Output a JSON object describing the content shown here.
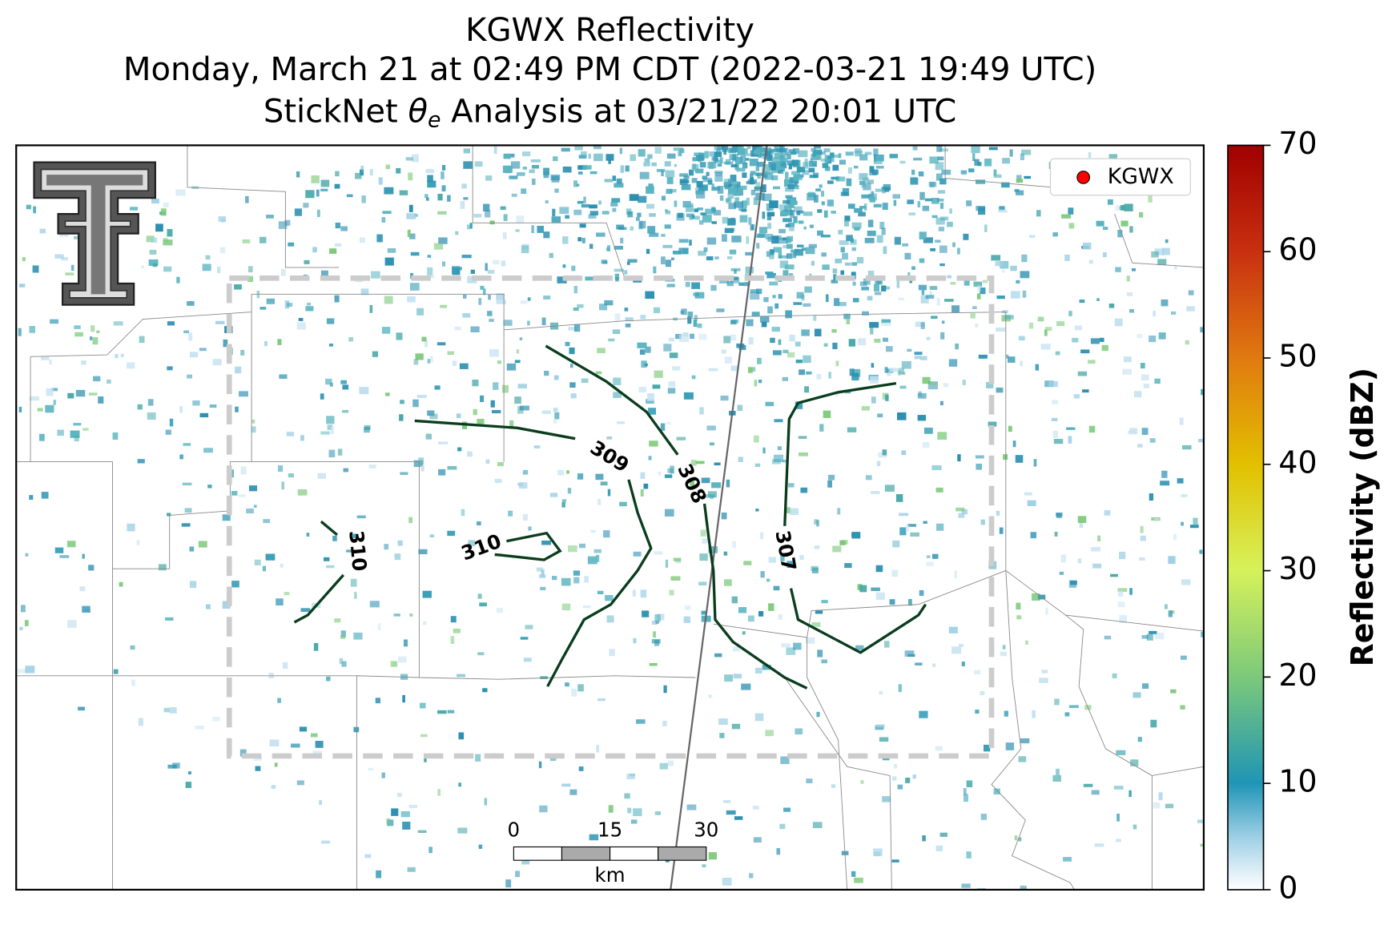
{
  "title": {
    "line1": "KGWX Reflectivity",
    "line2": "Monday, March 21 at 02:49 PM CDT (2022-03-21 19:49 UTC)",
    "line3": {
      "prefix": "StickNet ",
      "symbol": "θ",
      "subscript": "e",
      "suffix": " Analysis at 03/21/22 20:01 UTC"
    }
  },
  "legend": {
    "label": "KGWX",
    "color": "#ff0000"
  },
  "colorbar": {
    "label": "Reflectivity (dBZ)",
    "lim": [
      0,
      70
    ],
    "ticks": [
      0,
      10,
      20,
      30,
      40,
      50,
      60,
      70
    ]
  },
  "contour_labels": [
    309,
    308,
    310,
    310,
    307
  ],
  "scale_bar": {
    "ticks": [
      "0",
      "15",
      "30"
    ],
    "unit": "km"
  }
}
